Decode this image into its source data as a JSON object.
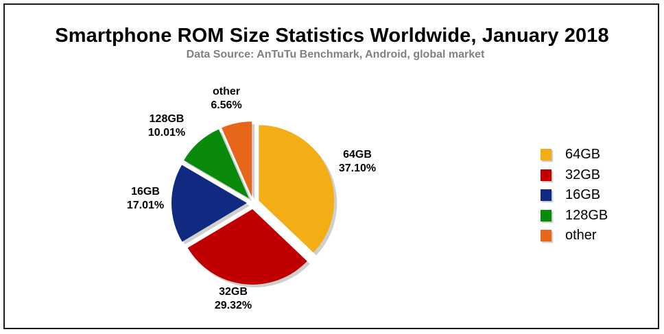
{
  "chart_data": {
    "type": "pie",
    "title": "Smartphone ROM Size Statistics Worldwide, January 2018",
    "subtitle": "Data Source: AnTuTu Benchmark, Android, global market",
    "categories": [
      "64GB",
      "32GB",
      "16GB",
      "128GB",
      "other"
    ],
    "values": [
      37.1,
      29.32,
      17.01,
      10.01,
      6.56
    ],
    "value_labels": [
      "37.10%",
      "29.32%",
      "17.01%",
      "10.01%",
      "6.56%"
    ],
    "colors": [
      "#F2AE14",
      "#C00000",
      "#0F2A80",
      "#0A8A0A",
      "#E8661A"
    ],
    "exploded": true,
    "legend": {
      "position": "right",
      "entries": [
        "64GB",
        "32GB",
        "16GB",
        "128GB",
        "other"
      ]
    }
  }
}
